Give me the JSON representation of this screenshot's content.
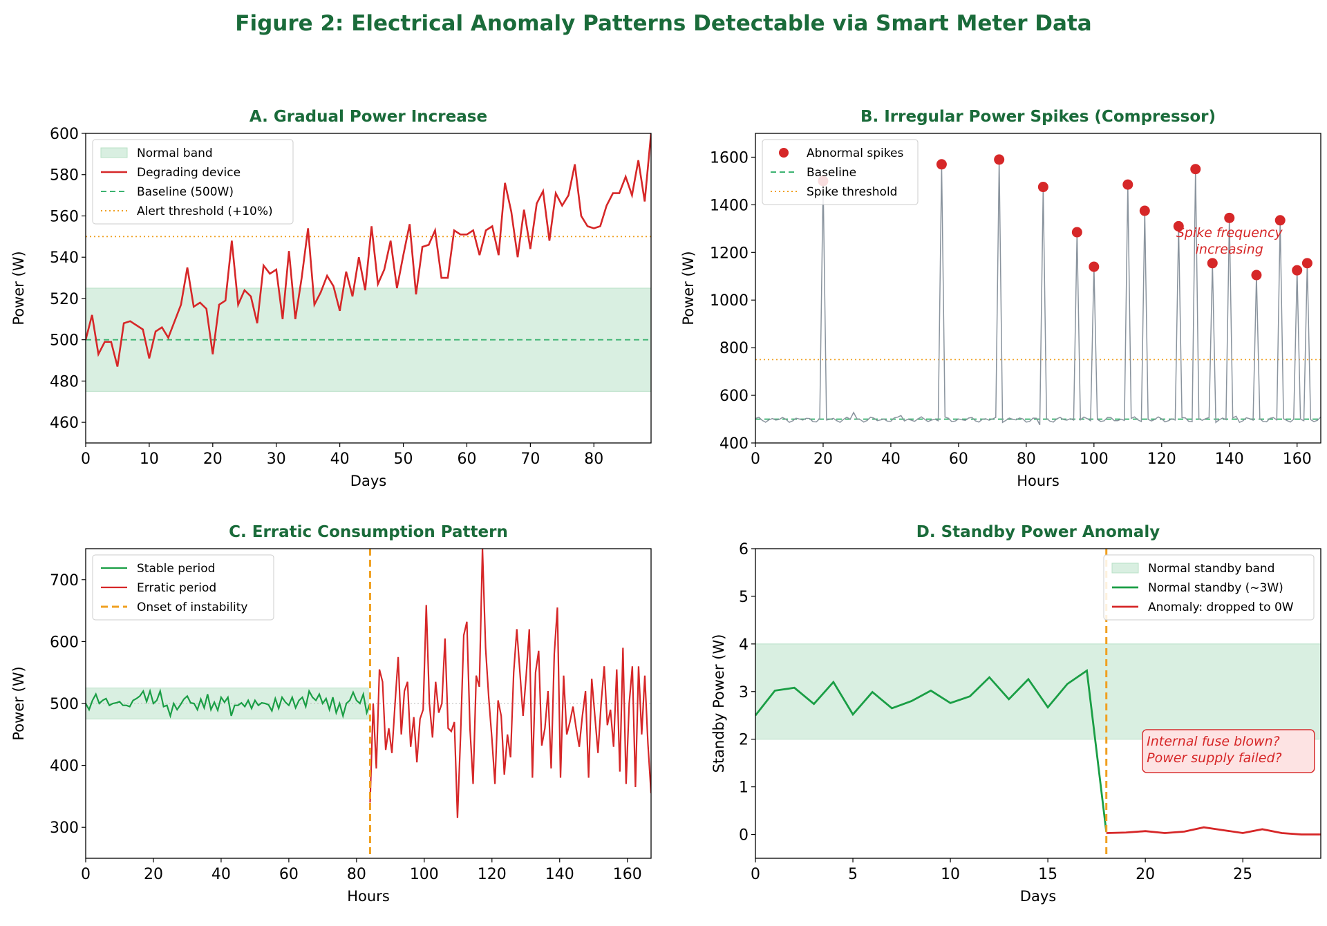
{
  "suptitle": "Figure 2: Electrical Anomaly Patterns Detectable via Smart Meter Data",
  "colors": {
    "title": "#1a6b3a",
    "red": "#d62728",
    "green": "#1a9e45",
    "green_dash": "#3cb371",
    "orange": "#f0a020",
    "gray": "#8a949e",
    "band": "#d9efe1"
  },
  "chart_data": [
    {
      "id": "A",
      "type": "line",
      "title": "A. Gradual Power Increase",
      "xlabel": "Days",
      "ylabel": "Power (W)",
      "xlim": [
        0,
        89
      ],
      "ylim": [
        450,
        600
      ],
      "xticks": [
        0,
        10,
        20,
        30,
        40,
        50,
        60,
        70,
        80
      ],
      "yticks": [
        460,
        480,
        500,
        520,
        540,
        560,
        580,
        600
      ],
      "band": {
        "label": "Normal band",
        "range": [
          475,
          525
        ]
      },
      "baseline": {
        "label": "Baseline (500W)",
        "value": 500
      },
      "threshold": {
        "label": "Alert threshold (+10%)",
        "value": 550
      },
      "series": [
        {
          "name": "Degrading device",
          "values": [
            500,
            512,
            493,
            499,
            499,
            487,
            508,
            509,
            507,
            505,
            491,
            504,
            506,
            501,
            509,
            517,
            535,
            516,
            518,
            515,
            493,
            517,
            519,
            548,
            517,
            524,
            521,
            508,
            536,
            532,
            534,
            510,
            543,
            510,
            530,
            554,
            517,
            523,
            531,
            526,
            514,
            533,
            521,
            540,
            524,
            555,
            527,
            534,
            548,
            525,
            541,
            556,
            522,
            545,
            546,
            553,
            530,
            530,
            553,
            551,
            551,
            553,
            541,
            553,
            555,
            541,
            576,
            562,
            540,
            563,
            544,
            566,
            572,
            548,
            571,
            565,
            570,
            585,
            560,
            555,
            554,
            555,
            565,
            571,
            571,
            579,
            570,
            587,
            567,
            600
          ]
        }
      ]
    },
    {
      "id": "B",
      "type": "line",
      "title": "B. Irregular Power Spikes (Compressor)",
      "xlabel": "Hours",
      "ylabel": "Power (W)",
      "xlim": [
        0,
        167
      ],
      "ylim": [
        400,
        1700
      ],
      "xticks": [
        0,
        20,
        40,
        60,
        80,
        100,
        120,
        140,
        160
      ],
      "yticks": [
        400,
        600,
        800,
        1000,
        1200,
        1400,
        1600
      ],
      "baseline": {
        "label": "Baseline",
        "value": 500
      },
      "threshold": {
        "label": "Spike threshold",
        "value": 750
      },
      "spikes_label": "Abnormal spikes",
      "spikes": [
        [
          20,
          1500
        ],
        [
          55,
          1570
        ],
        [
          72,
          1590
        ],
        [
          85,
          1475
        ],
        [
          95,
          1285
        ],
        [
          100,
          1140
        ],
        [
          110,
          1485
        ],
        [
          115,
          1375
        ],
        [
          125,
          1310
        ],
        [
          130,
          1550
        ],
        [
          135,
          1155
        ],
        [
          140,
          1345
        ],
        [
          148,
          1105
        ],
        [
          155,
          1335
        ],
        [
          160,
          1125
        ],
        [
          163,
          1155
        ]
      ],
      "annotation": [
        "Spike frequency",
        "increasing"
      ]
    },
    {
      "id": "C",
      "type": "line",
      "title": "C. Erratic Consumption Pattern",
      "xlabel": "Hours",
      "ylabel": "Power (W)",
      "xlim": [
        0,
        167
      ],
      "ylim": [
        250,
        750
      ],
      "xticks": [
        0,
        20,
        40,
        60,
        80,
        100,
        120,
        140,
        160
      ],
      "yticks": [
        300,
        400,
        500,
        600,
        700
      ],
      "band": {
        "range": [
          475,
          525
        ]
      },
      "onset": {
        "label": "Onset of instability",
        "value": 84
      },
      "stable": {
        "label": "Stable period",
        "values": [
          500,
          490,
          505,
          515,
          500,
          505,
          508,
          497,
          500,
          501,
          503,
          497,
          497,
          495,
          505,
          508,
          512,
          520,
          503,
          520,
          500,
          505,
          520,
          495,
          497,
          480,
          500,
          490,
          498,
          507,
          512,
          501,
          500,
          490,
          507,
          493,
          515,
          490,
          502,
          489,
          510,
          502,
          510,
          480,
          497,
          497,
          501,
          495,
          505,
          492,
          505,
          497,
          501,
          500,
          498,
          488,
          508,
          492,
          510,
          502,
          497,
          510,
          493,
          505,
          510,
          495,
          520,
          510,
          505,
          515,
          500,
          508,
          490,
          510,
          485,
          500,
          480,
          500,
          505,
          518,
          505,
          500,
          515,
          485,
          500
        ]
      },
      "erratic": {
        "label": "Erratic period",
        "values": [
          340,
          500,
          395,
          555,
          535,
          425,
          460,
          420,
          500,
          575,
          450,
          520,
          535,
          430,
          478,
          405,
          475,
          490,
          659,
          500,
          445,
          535,
          485,
          500,
          605,
          460,
          455,
          470,
          315,
          450,
          610,
          632,
          460,
          370,
          545,
          527,
          750,
          590,
          510,
          445,
          370,
          505,
          480,
          385,
          450,
          413,
          550,
          620,
          550,
          480,
          545,
          620,
          380,
          550,
          585,
          432,
          460,
          520,
          395,
          580,
          655,
          380,
          545,
          450,
          470,
          495,
          460,
          430,
          480,
          520,
          380,
          540,
          480,
          420,
          500,
          560,
          465,
          490,
          430,
          555,
          390,
          590,
          370,
          500,
          560,
          365,
          560,
          450,
          545,
          435,
          355
        ]
      }
    },
    {
      "id": "D",
      "type": "line",
      "title": "D. Standby Power Anomaly",
      "xlabel": "Days",
      "ylabel": "Standby Power (W)",
      "xlim": [
        0,
        29
      ],
      "ylim": [
        -0.5,
        6
      ],
      "xticks": [
        0,
        5,
        10,
        15,
        20,
        25
      ],
      "yticks": [
        0,
        1,
        2,
        3,
        4,
        5,
        6
      ],
      "band": {
        "label": "Normal standby band",
        "range": [
          2,
          4
        ]
      },
      "event_x": 18,
      "normal": {
        "label": "Normal standby (~3W)",
        "values": [
          2.5,
          3.02,
          3.08,
          2.74,
          3.2,
          2.52,
          2.99,
          2.65,
          2.8,
          3.02,
          2.76,
          2.9,
          3.3,
          2.84,
          3.26,
          2.67,
          3.16,
          3.44,
          0.05
        ]
      },
      "anomaly": {
        "label": "Anomaly: dropped to 0W",
        "values": [
          0.03,
          0.04,
          0.07,
          0.03,
          0.06,
          0.15,
          0.09,
          0.03,
          0.11,
          0.03,
          0.0,
          0.0
        ]
      },
      "annotation": [
        "Internal fuse blown?",
        "Power supply failed?"
      ]
    }
  ]
}
